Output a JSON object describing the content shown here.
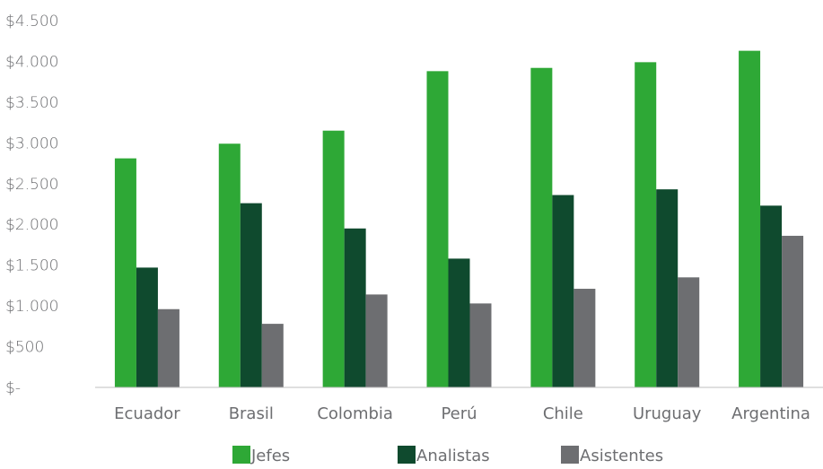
{
  "chart_data": {
    "type": "bar",
    "categories": [
      "Ecuador",
      "Brasil",
      "Colombia",
      "Perú",
      "Chile",
      "Uruguay",
      "Argentina"
    ],
    "series": [
      {
        "name": "Jefes",
        "color": "#2ea836",
        "values": [
          2810,
          2990,
          3150,
          3880,
          3920,
          3990,
          4130
        ]
      },
      {
        "name": "Analistas",
        "color": "#0f4a2e",
        "values": [
          1470,
          2260,
          1950,
          1580,
          2360,
          2430,
          2230
        ]
      },
      {
        "name": "Asistentes",
        "color": "#6d6e71",
        "values": [
          960,
          780,
          1140,
          1030,
          1210,
          1350,
          1860
        ]
      }
    ],
    "yticks": [
      0,
      500,
      1000,
      1500,
      2000,
      2500,
      3000,
      3500,
      4000,
      4500
    ],
    "ytick_labels": [
      "$-",
      "$500",
      "$1.000",
      "$1.500",
      "$2.000",
      "$2.500",
      "$3.000",
      "$3.500",
      "$4.000",
      "$4.500"
    ],
    "ylim": [
      0,
      4500
    ],
    "title": "",
    "xlabel": "",
    "ylabel": "",
    "grid": false,
    "legend_position": "bottom"
  }
}
